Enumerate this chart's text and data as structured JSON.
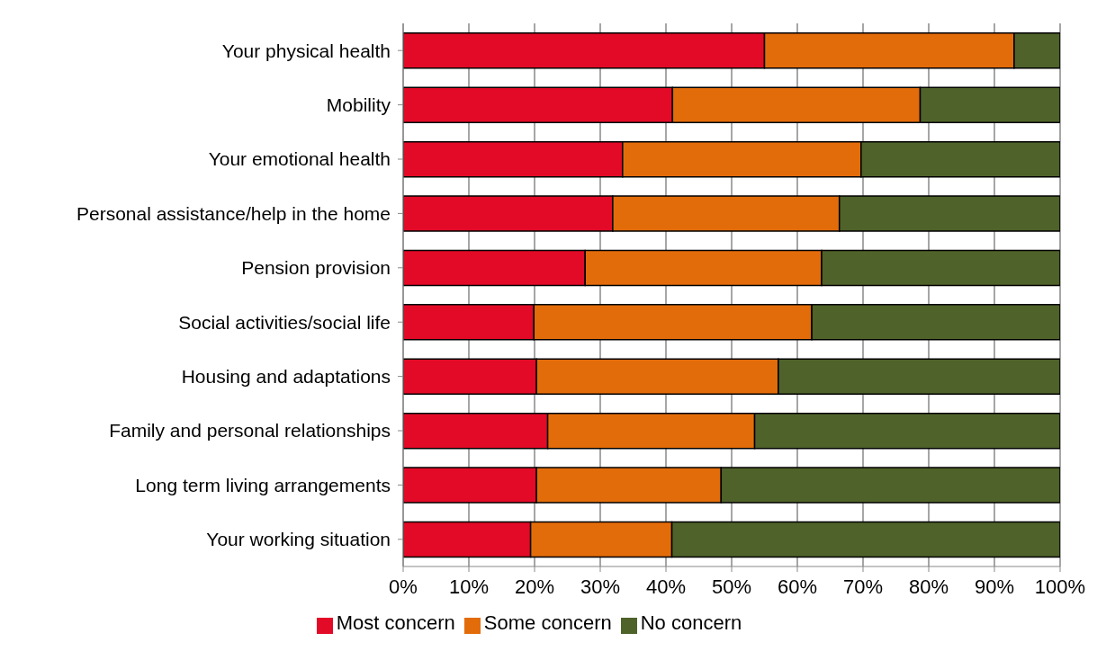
{
  "chart_data": {
    "type": "bar",
    "orientation": "horizontal",
    "stacked": true,
    "categories": [
      "Your physical health",
      "Mobility",
      "Your emotional health",
      "Personal assistance/help in the home",
      "Pension provision",
      "Social activities/social life",
      "Housing and adaptations",
      "Family and personal relationships",
      "Long term living arrangements",
      "Your working situation"
    ],
    "series": [
      {
        "name": "Most concern",
        "color": "#e30a27",
        "values": [
          55,
          41,
          33.4,
          31.9,
          27.7,
          19.9,
          20.3,
          22,
          20.3,
          19.4
        ]
      },
      {
        "name": "Some concern",
        "color": "#e36c0a",
        "values": [
          38,
          37.7,
          36.3,
          34.5,
          36,
          42.3,
          36.8,
          31.5,
          28.1,
          21.5
        ]
      },
      {
        "name": "No concern",
        "color": "#4f622a",
        "values": [
          7,
          21.3,
          30.3,
          33.6,
          36.3,
          37.8,
          42.9,
          46.5,
          51.6,
          59.1
        ]
      }
    ],
    "xlim": [
      0,
      100
    ],
    "xticks": [
      {
        "value": 0,
        "label": "0%"
      },
      {
        "value": 10,
        "label": "10%"
      },
      {
        "value": 20,
        "label": "20%"
      },
      {
        "value": 30,
        "label": "30%"
      },
      {
        "value": 40,
        "label": "40%"
      },
      {
        "value": 50,
        "label": "50%"
      },
      {
        "value": 60,
        "label": "60%"
      },
      {
        "value": 70,
        "label": "70%"
      },
      {
        "value": 80,
        "label": "80%"
      },
      {
        "value": 90,
        "label": "90%"
      },
      {
        "value": 100,
        "label": "100%"
      }
    ],
    "grid": "x",
    "legend": "bottom"
  }
}
